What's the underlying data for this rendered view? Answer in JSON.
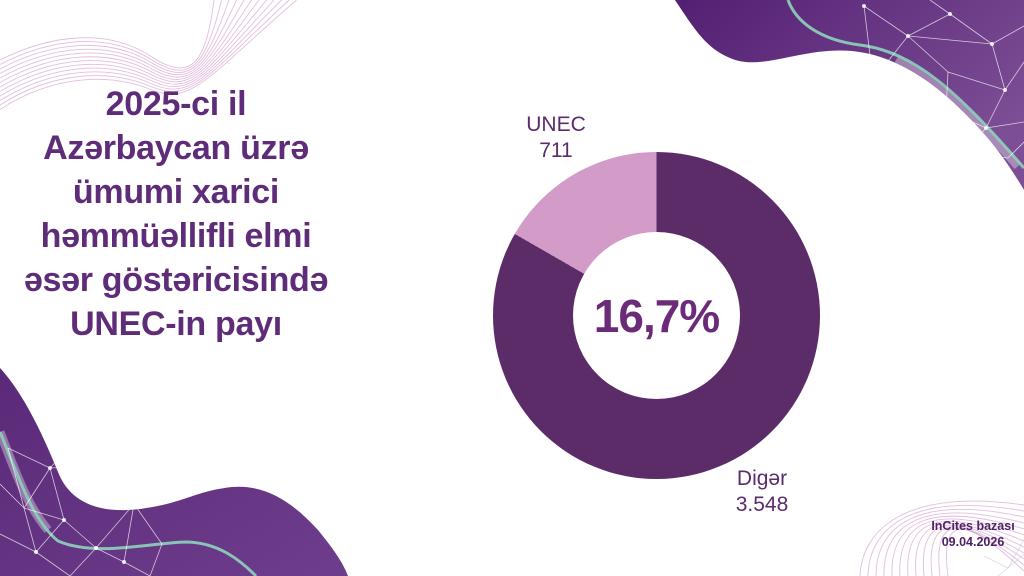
{
  "slide": {
    "title_lines": [
      "2025-ci il",
      "Azərbaycan üzrə",
      "ümumi xarici",
      "həmmüəllifli elmi",
      "əsər göstəricisində",
      "UNEC-in payı"
    ],
    "source": {
      "line1": "InCites bazası",
      "line2": "09.04.2026"
    }
  },
  "chart_data": {
    "type": "pie",
    "style": "donut",
    "categories": [
      "UNEC",
      "Digər"
    ],
    "values": [
      711,
      3548
    ],
    "value_labels": [
      "711",
      "3.548"
    ],
    "center_label": "16,7%",
    "colors": {
      "unec": "#d29bc8",
      "diger": "#5c2c68"
    },
    "legend_position": "callouts",
    "start_angle_deg": 0,
    "direction": "diger-segment-clockwise-from-top, unec-segment-fills-last-60deg"
  },
  "colors": {
    "background": "#ffffff",
    "title_text": "#5e2c78",
    "center_text": "#6b2b79",
    "label_text": "#5c2b6e",
    "source_text": "#4f2167",
    "wave_dark": "#531f72",
    "wave_light": "#7c4e95",
    "wave_bl_dark": "#5a2a78",
    "wave_bl_light": "#6e3d8c",
    "teal_accent": "#8ccbb8",
    "swirl_lines": "#c67ebd"
  }
}
